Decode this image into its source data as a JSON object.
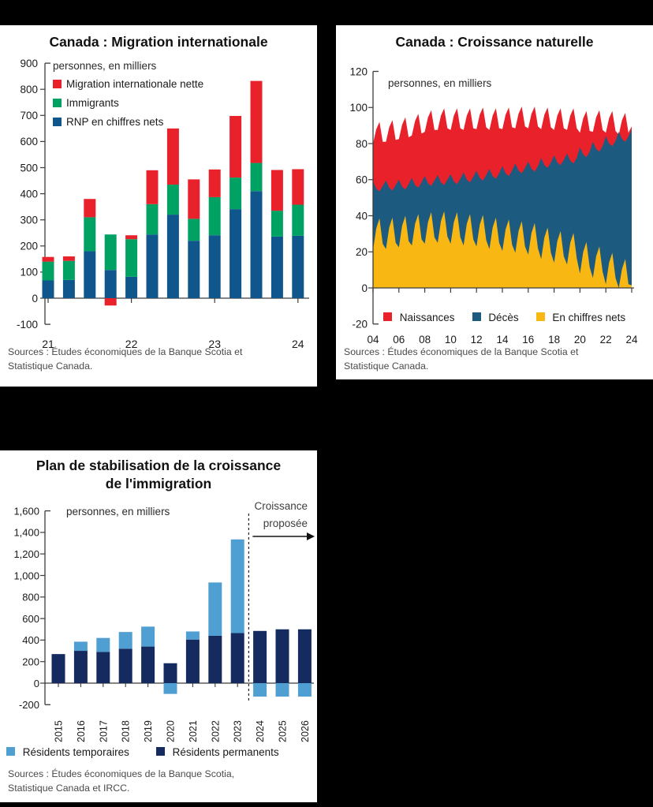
{
  "background": "#000000",
  "chart_data": [
    {
      "type": "bar",
      "title": "Canada : Migration internationale",
      "unit_note": "personnes, en milliers",
      "categories": [
        "21Q1",
        "21Q2",
        "21Q3",
        "21Q4",
        "22Q1",
        "22Q2",
        "22Q3",
        "22Q4",
        "23Q1",
        "23Q2",
        "23Q3",
        "23Q4",
        "24Q1"
      ],
      "x_tick_labels": [
        "21",
        "22",
        "23",
        "24"
      ],
      "x_tick_indices": [
        0,
        4,
        8,
        12
      ],
      "ylim": [
        -100,
        900
      ],
      "y_tick_step": 100,
      "y_tick_labels": [
        "900",
        "800",
        "700",
        "600",
        "500",
        "400",
        "300",
        "200",
        "100",
        "0",
        "-100"
      ],
      "y_tick_values": [
        900,
        800,
        700,
        600,
        500,
        400,
        300,
        200,
        100,
        0,
        -100
      ],
      "series": [
        {
          "name": "RNP en chiffres nets",
          "color": "#0f568c",
          "values": [
            68,
            70,
            180,
            108,
            82,
            244,
            320,
            220,
            241,
            341,
            410,
            236,
            239
          ]
        },
        {
          "name": "Immigrants",
          "color": "#00a263",
          "values": [
            72,
            73,
            130,
            136,
            144,
            116,
            115,
            84,
            146,
            121,
            108,
            99,
            119
          ]
        },
        {
          "name": "Migration internationale nette",
          "color": "#e8212b",
          "values": [
            18,
            17,
            70,
            -28,
            15,
            130,
            215,
            151,
            106,
            236,
            314,
            156,
            136
          ]
        }
      ],
      "sources": [
        "Sources : Études économiques de la Banque Scotia et",
        "Statistique Canada."
      ]
    },
    {
      "type": "area",
      "title": "Canada : Croissance naturelle",
      "unit_note": "personnes, en milliers",
      "x_start": 2004,
      "x_step": 0.25,
      "x_tick_labels": [
        "04",
        "06",
        "08",
        "10",
        "12",
        "14",
        "16",
        "18",
        "20",
        "22",
        "24"
      ],
      "x_tick_years": [
        2004,
        2006,
        2008,
        2010,
        2012,
        2014,
        2016,
        2018,
        2020,
        2022,
        2024
      ],
      "ylim": [
        -20,
        120
      ],
      "y_tick_step": 20,
      "y_tick_labels": [
        "120",
        "100",
        "80",
        "60",
        "40",
        "20",
        "0",
        "-20"
      ],
      "y_tick_values": [
        120,
        100,
        80,
        60,
        40,
        20,
        0,
        -20
      ],
      "series": [
        {
          "name": "Naissances",
          "color": "#e8212b",
          "values": [
            80,
            88,
            92,
            81,
            81,
            89,
            93,
            82,
            82.5,
            90.5,
            94.5,
            83.5,
            84.5,
            92.5,
            96.5,
            85.5,
            86.5,
            94.5,
            98.5,
            87.5,
            87.5,
            95.5,
            99.5,
            88.5,
            87.5,
            95.5,
            99.5,
            88.5,
            87.5,
            95.5,
            99.5,
            88.5,
            88,
            96,
            100,
            89,
            87.5,
            95.5,
            99.5,
            88.5,
            88,
            96,
            100,
            89,
            88.5,
            96.5,
            100.5,
            89.5,
            88.5,
            96.5,
            100.5,
            89.5,
            88,
            96,
            100,
            89,
            87.5,
            95.5,
            99.5,
            88.5,
            87.5,
            95.5,
            99.5,
            88.5,
            86,
            94,
            98,
            87,
            86.5,
            94.5,
            98.5,
            87.5,
            86,
            94,
            98,
            87,
            85,
            93,
            97,
            86,
            89.5
          ]
        },
        {
          "name": "Décès",
          "color": "#1c5a80",
          "values": [
            59,
            55,
            53.5,
            56.5,
            59.5,
            55.5,
            54,
            57,
            60,
            56,
            54.5,
            57.5,
            61,
            57,
            55.5,
            58.5,
            62,
            58,
            56.5,
            59.5,
            62.5,
            58.5,
            57,
            60,
            63,
            59,
            57.5,
            60.5,
            64,
            60,
            58.5,
            61.5,
            65,
            61,
            59.5,
            62.5,
            66,
            62,
            60.5,
            63.5,
            67.5,
            63.5,
            62,
            65,
            69,
            65,
            63.5,
            66.5,
            70,
            66,
            64.5,
            67.5,
            72,
            68,
            66.5,
            69.5,
            73.5,
            69.5,
            68,
            71,
            74.5,
            70.5,
            69,
            72,
            78,
            74,
            72.5,
            75.5,
            81,
            77,
            75.5,
            78.5,
            84,
            80,
            78.5,
            81.5,
            86.5,
            82.5,
            81,
            84,
            88
          ]
        },
        {
          "name": "En chiffres nets",
          "color": "#f8b712",
          "values": [
            21,
            33,
            38.5,
            24.5,
            21.5,
            33.5,
            39,
            25,
            22.5,
            34.5,
            40,
            26,
            23.5,
            35.5,
            41,
            27,
            24.5,
            36.5,
            42,
            28,
            25,
            37,
            42.5,
            28.5,
            24.5,
            36.5,
            42,
            28,
            23.5,
            35.5,
            41,
            27,
            23,
            35,
            40.5,
            26.5,
            21.5,
            33.5,
            39,
            25,
            20.5,
            32.5,
            38,
            24,
            19.5,
            31.5,
            37,
            23,
            18.5,
            30.5,
            36,
            22,
            16,
            28,
            33.5,
            19.5,
            14,
            26,
            31.5,
            17.5,
            13,
            25,
            30.5,
            16.5,
            8,
            20,
            25.5,
            11.5,
            5.5,
            17.5,
            23,
            9,
            2,
            14,
            19.5,
            5.5,
            0,
            10.5,
            16,
            2,
            1.5
          ]
        }
      ],
      "sources": [
        "Sources : Études économiques de la Banque Scotia et",
        "Statistique Canada."
      ]
    },
    {
      "type": "bar",
      "title": "Plan de stabilisation de la croissance de l'immigration",
      "title_lines": [
        "Plan de stabilisation de la croissance",
        "de l'immigration"
      ],
      "unit_note": "personnes, en milliers",
      "annotation_lines": [
        "Croissance",
        "proposée"
      ],
      "categories": [
        "2015",
        "2016",
        "2017",
        "2018",
        "2019",
        "2020",
        "2021",
        "2022",
        "2023",
        "2024",
        "2025",
        "2026"
      ],
      "proposed_start_index": 9,
      "ylim": [
        -200,
        1600
      ],
      "y_tick_step": 200,
      "y_tick_labels": [
        "1,600",
        "1,400",
        "1,200",
        "1,000",
        "800",
        "600",
        "400",
        "200",
        "0",
        "-200"
      ],
      "y_tick_values": [
        1600,
        1400,
        1200,
        1000,
        800,
        600,
        400,
        200,
        0,
        -200
      ],
      "series": [
        {
          "name": "Résidents permanents",
          "color": "#152a5f",
          "values": [
            270,
            300,
            290,
            320,
            340,
            185,
            405,
            440,
            465,
            485,
            500,
            500
          ]
        },
        {
          "name": "Résidents temporaires",
          "color": "#4f9fd3",
          "values": [
            0,
            85,
            130,
            155,
            185,
            -100,
            75,
            495,
            870,
            -125,
            -125,
            -125
          ]
        }
      ],
      "sources": [
        "Sources : Études économiques de la Banque Scotia,",
        "Statistique Canada et IRCC."
      ]
    }
  ]
}
